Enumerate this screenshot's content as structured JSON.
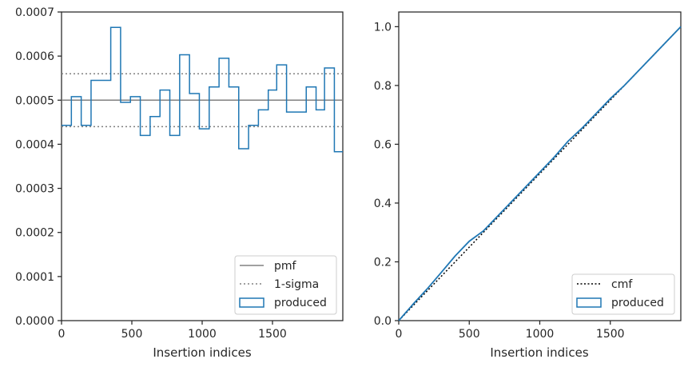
{
  "chart_data": [
    {
      "type": "step",
      "xlabel": "Insertion indices",
      "ylabel": "",
      "xlim": [
        0,
        2000
      ],
      "ylim": [
        0,
        0.0007
      ],
      "x_ticks": [
        0,
        500,
        1000,
        1500
      ],
      "y_ticks": [
        0,
        0.0001,
        0.0002,
        0.0003,
        0.0004,
        0.0005,
        0.0006,
        0.0007
      ],
      "x_tick_labels": [
        "0",
        "500",
        "1000",
        "1500"
      ],
      "y_tick_labels": [
        "0.0000",
        "0.0001",
        "0.0002",
        "0.0003",
        "0.0004",
        "0.0005",
        "0.0006",
        "0.0007"
      ],
      "pmf": 0.0005,
      "sigma_lines": [
        0.00044,
        0.00056
      ],
      "bin_edges": [
        0,
        70,
        140,
        210,
        350,
        420,
        490,
        560,
        630,
        700,
        770,
        840,
        910,
        980,
        1050,
        1120,
        1190,
        1260,
        1330,
        1400,
        1470,
        1530,
        1600,
        1740,
        1810,
        1870,
        1940,
        2000
      ],
      "produced": [
        0.000443,
        0.000508,
        0.000443,
        0.000545,
        0.000665,
        0.000495,
        0.000508,
        0.00042,
        0.000463,
        0.000523,
        0.00042,
        0.000603,
        0.000515,
        0.000435,
        0.00053,
        0.000595,
        0.00053,
        0.00039,
        0.000443,
        0.000478,
        0.000523,
        0.00058,
        0.000473,
        0.00053,
        0.000478,
        0.000573,
        0.000383
      ],
      "legend": [
        "pmf",
        "1-sigma",
        "produced"
      ],
      "legend_position": "lower-right",
      "colors": {
        "pmf": "#808080",
        "sigma": "#808080",
        "produced": "#1f77b4"
      }
    },
    {
      "type": "line",
      "xlabel": "Insertion indices",
      "ylabel": "",
      "xlim": [
        0,
        2000
      ],
      "ylim": [
        0,
        1.05
      ],
      "x_ticks": [
        0,
        500,
        1000,
        1500
      ],
      "y_ticks": [
        0,
        0.2,
        0.4,
        0.6,
        0.8,
        1.0
      ],
      "x_tick_labels": [
        "0",
        "500",
        "1000",
        "1500"
      ],
      "y_tick_labels": [
        "0.0",
        "0.2",
        "0.4",
        "0.6",
        "0.8",
        "1.0"
      ],
      "cmf": {
        "x": [
          0,
          2000
        ],
        "y": [
          0,
          1.0
        ]
      },
      "produced": {
        "x": [
          0,
          100,
          200,
          300,
          400,
          500,
          600,
          700,
          800,
          900,
          1000,
          1100,
          1200,
          1300,
          1400,
          1500,
          1600,
          1700,
          1800,
          1900,
          2000
        ],
        "y": [
          0,
          0.055,
          0.107,
          0.163,
          0.22,
          0.27,
          0.305,
          0.355,
          0.405,
          0.455,
          0.505,
          0.555,
          0.61,
          0.655,
          0.705,
          0.755,
          0.8,
          0.85,
          0.9,
          0.95,
          1.0
        ]
      },
      "legend": [
        "cmf",
        "produced"
      ],
      "legend_position": "lower-right",
      "colors": {
        "cmf": "#000000",
        "produced": "#1f77b4"
      }
    }
  ]
}
